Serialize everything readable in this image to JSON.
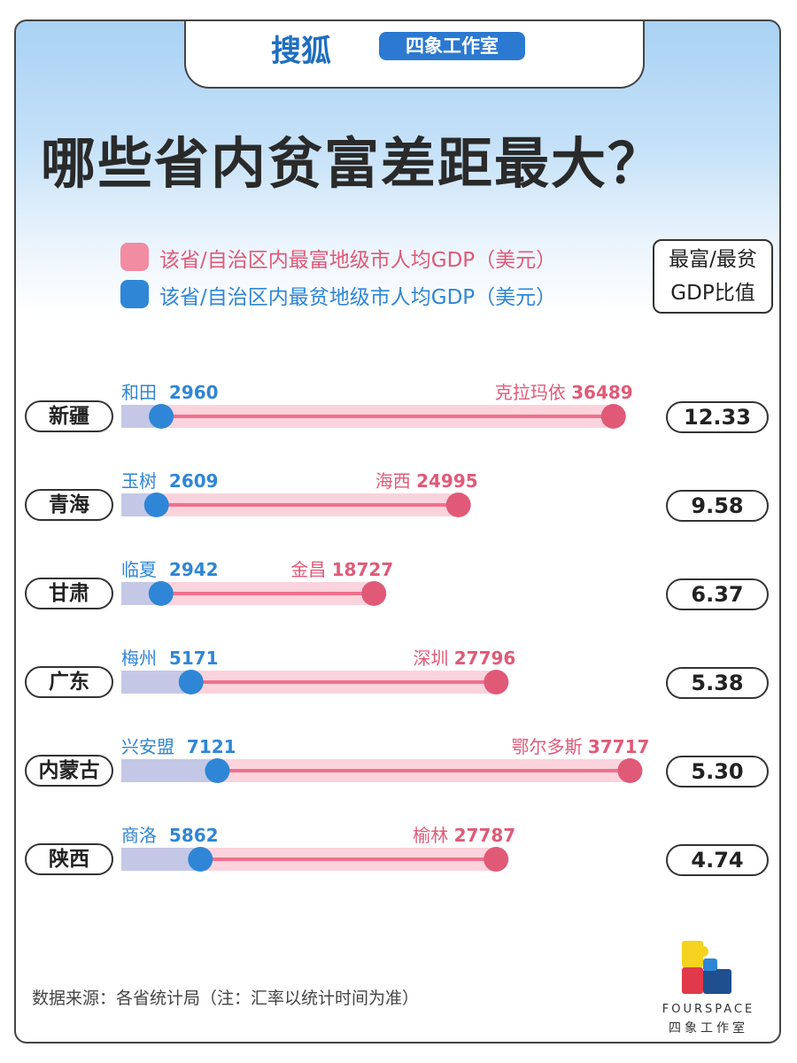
{
  "header": {
    "brand": "搜狐",
    "studio": "四象工作室"
  },
  "title": "哪些省内贫富差距最大？",
  "legend": {
    "rich": {
      "label": "该省/自治区内最富地级市人均GDP（美元）",
      "color": "#f28ca3"
    },
    "poor": {
      "label": "该省/自治区内最贫地级市人均GDP（美元）",
      "color": "#2f86d6"
    }
  },
  "ratio_header": {
    "line1": "最富/最贫",
    "line2": "GDP比值"
  },
  "chart_data": {
    "type": "dumbbell",
    "title": "哪些省内贫富差距最大？",
    "unit": "美元",
    "series": [
      {
        "province": "新疆",
        "poor_city": "和田",
        "poor_value": 2960,
        "rich_city": "克拉玛依",
        "rich_value": 36489,
        "ratio": "12.33"
      },
      {
        "province": "青海",
        "poor_city": "玉树",
        "poor_value": 2609,
        "rich_city": "海西",
        "rich_value": 24995,
        "ratio": "9.58"
      },
      {
        "province": "甘肃",
        "poor_city": "临夏",
        "poor_value": 2942,
        "rich_city": "金昌",
        "rich_value": 18727,
        "ratio": "6.37"
      },
      {
        "province": "广东",
        "poor_city": "梅州",
        "poor_value": 5171,
        "rich_city": "深圳",
        "rich_value": 27796,
        "ratio": "5.38"
      },
      {
        "province": "内蒙古",
        "poor_city": "兴安盟",
        "poor_value": 7121,
        "rich_city": "鄂尔多斯",
        "rich_value": 37717,
        "ratio": "5.30"
      },
      {
        "province": "陕西",
        "poor_city": "商洛",
        "poor_value": 5862,
        "rich_city": "榆林",
        "rich_value": 27787,
        "ratio": "4.74"
      }
    ],
    "colors": {
      "poor": "#2f86d6",
      "rich": "#e05a78",
      "track": "#fbd3dc",
      "poor_track": "#c4c8e6"
    }
  },
  "footer": {
    "source": "数据来源：各省统计局（注：汇率以统计时间为准）",
    "logo_name": "FOURSPACE",
    "logo_sub": "四象工作室"
  }
}
